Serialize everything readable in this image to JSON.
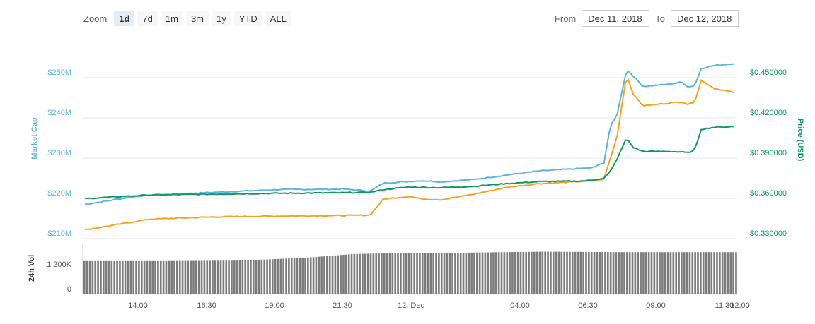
{
  "toolbar": {
    "zoom_label": "Zoom",
    "buttons": [
      "1d",
      "7d",
      "1m",
      "3m",
      "1y",
      "YTD",
      "ALL"
    ],
    "active": "1d"
  },
  "range": {
    "from_label": "From",
    "from_value": "Dec 11, 2018",
    "to_label": "To",
    "to_value": "Dec 12, 2018"
  },
  "chart_data": {
    "type": "line",
    "x_ticks": [
      "14:00",
      "16:30",
      "19:00",
      "21:30",
      "12. Dec",
      "04:00",
      "06:30",
      "09:00",
      "11:30",
      "12:00"
    ],
    "left_axis": {
      "label": "Market Cap",
      "ticks": [
        "$250M",
        "$240M",
        "$230M",
        "$220M",
        "$210M"
      ],
      "range": [
        210,
        250
      ],
      "color": "#5ab4dd"
    },
    "right_axis": {
      "label": "Price (USD)",
      "ticks": [
        "$0.450000",
        "$0.420000",
        "$0.390000",
        "$0.360000",
        "$0.330000"
      ],
      "range": [
        0.33,
        0.45
      ],
      "color": "#0a9a5f"
    },
    "volume_axis": {
      "label": "24h Vol",
      "ticks": [
        "1 200K",
        "0"
      ]
    },
    "series": [
      {
        "color": "#5ab4dd",
        "axis": "left",
        "anchors": [
          [
            0,
            218.5
          ],
          [
            0.05,
            219.8
          ],
          [
            0.08,
            220.5
          ],
          [
            0.1,
            220.8
          ],
          [
            0.2,
            221.5
          ],
          [
            0.3,
            222.2
          ],
          [
            0.4,
            222.3
          ],
          [
            0.44,
            221.8
          ],
          [
            0.46,
            223.8
          ],
          [
            0.5,
            224.2
          ],
          [
            0.52,
            224.4
          ],
          [
            0.55,
            224.1
          ],
          [
            0.6,
            224.7
          ],
          [
            0.65,
            225.8
          ],
          [
            0.7,
            226.8
          ],
          [
            0.75,
            227.3
          ],
          [
            0.77,
            227.5
          ],
          [
            0.78,
            227.5
          ],
          [
            0.8,
            228.8
          ],
          [
            0.81,
            238
          ],
          [
            0.82,
            240.5
          ],
          [
            0.835,
            252
          ],
          [
            0.845,
            250.5
          ],
          [
            0.86,
            247.8
          ],
          [
            0.9,
            248.4
          ],
          [
            0.92,
            248.9
          ],
          [
            0.93,
            247.7
          ],
          [
            0.94,
            248
          ],
          [
            0.95,
            252.3
          ],
          [
            0.97,
            253
          ],
          [
            1,
            253.5
          ]
        ]
      },
      {
        "color": "#f5a21b",
        "axis": "right",
        "anchors": [
          [
            0,
            0.3365
          ],
          [
            0.05,
            0.3405
          ],
          [
            0.1,
            0.3445
          ],
          [
            0.2,
            0.3462
          ],
          [
            0.3,
            0.3468
          ],
          [
            0.4,
            0.3472
          ],
          [
            0.44,
            0.3475
          ],
          [
            0.46,
            0.3595
          ],
          [
            0.5,
            0.3615
          ],
          [
            0.52,
            0.3595
          ],
          [
            0.55,
            0.359
          ],
          [
            0.6,
            0.3632
          ],
          [
            0.65,
            0.3682
          ],
          [
            0.7,
            0.371
          ],
          [
            0.75,
            0.3722
          ],
          [
            0.77,
            0.3728
          ],
          [
            0.78,
            0.373
          ],
          [
            0.8,
            0.3742
          ],
          [
            0.81,
            0.39
          ],
          [
            0.82,
            0.405
          ],
          [
            0.835,
            0.452
          ],
          [
            0.845,
            0.438
          ],
          [
            0.86,
            0.429
          ],
          [
            0.9,
            0.431
          ],
          [
            0.92,
            0.432
          ],
          [
            0.93,
            0.43
          ],
          [
            0.94,
            0.432
          ],
          [
            0.95,
            0.448
          ],
          [
            0.97,
            0.442
          ],
          [
            1,
            0.439
          ]
        ]
      },
      {
        "color": "#0a9a5f",
        "axis": "right",
        "anchors": [
          [
            0,
            0.3598
          ],
          [
            0.05,
            0.3612
          ],
          [
            0.1,
            0.3625
          ],
          [
            0.2,
            0.3632
          ],
          [
            0.3,
            0.3638
          ],
          [
            0.4,
            0.3642
          ],
          [
            0.44,
            0.3645
          ],
          [
            0.46,
            0.3665
          ],
          [
            0.5,
            0.3685
          ],
          [
            0.52,
            0.3682
          ],
          [
            0.55,
            0.368
          ],
          [
            0.6,
            0.369
          ],
          [
            0.65,
            0.371
          ],
          [
            0.7,
            0.3725
          ],
          [
            0.75,
            0.3728
          ],
          [
            0.77,
            0.373
          ],
          [
            0.78,
            0.3735
          ],
          [
            0.8,
            0.375
          ],
          [
            0.81,
            0.38
          ],
          [
            0.82,
            0.389
          ],
          [
            0.835,
            0.405
          ],
          [
            0.845,
            0.398
          ],
          [
            0.86,
            0.395
          ],
          [
            0.9,
            0.395
          ],
          [
            0.92,
            0.3945
          ],
          [
            0.93,
            0.394
          ],
          [
            0.94,
            0.396
          ],
          [
            0.95,
            0.4115
          ],
          [
            0.97,
            0.413
          ],
          [
            1,
            0.4135
          ]
        ]
      }
    ],
    "volume": [
      0.66,
      0.66,
      0.66,
      0.665,
      0.67,
      0.7,
      0.74,
      0.8,
      0.82,
      0.825,
      0.83,
      0.84,
      0.85,
      0.845,
      0.84,
      0.84,
      0.84,
      0.84
    ],
    "grid": true
  }
}
